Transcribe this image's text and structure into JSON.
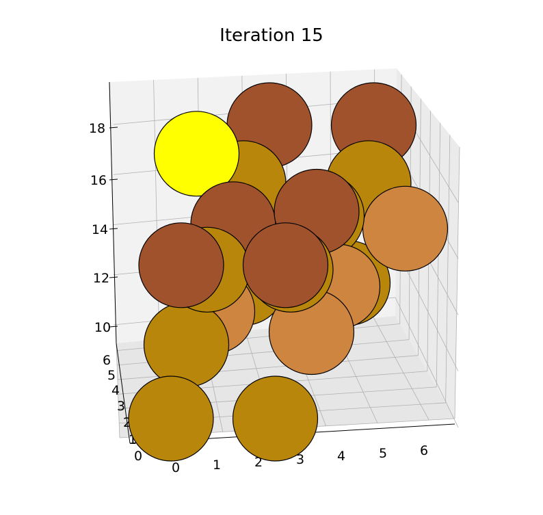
{
  "chart_data": {
    "type": "scatter",
    "projection": "3d",
    "title": "Iteration 15",
    "xlabel": "",
    "ylabel": "",
    "zlabel": "",
    "grid": true,
    "xlim": [
      0,
      6.5
    ],
    "ylim": [
      0,
      6.5
    ],
    "zlim": [
      10,
      19
    ],
    "x_ticks": [
      "0",
      "1",
      "2",
      "3",
      "4",
      "5",
      "6"
    ],
    "y_ticks": [
      "0",
      "1",
      "2",
      "3",
      "4",
      "5",
      "6"
    ],
    "z_ticks": [
      "10",
      "12",
      "14",
      "16",
      "18"
    ],
    "colors": {
      "gold": "#b8860b",
      "peru": "#cd853f",
      "sienna": "#a0522d",
      "highlight": "#ffff00"
    },
    "points": [
      {
        "x": 1.5,
        "y": 4.5,
        "z": 11.5,
        "color": "gold"
      },
      {
        "x": 4.0,
        "y": 4.5,
        "z": 11.5,
        "color": "gold"
      },
      {
        "x": 0.5,
        "y": 3.0,
        "z": 11.5,
        "color": "gold"
      },
      {
        "x": 2.5,
        "y": 4.5,
        "z": 13.5,
        "color": "peru"
      },
      {
        "x": 4.0,
        "y": 3.5,
        "z": 13.0,
        "color": "peru"
      },
      {
        "x": 5.5,
        "y": 4.0,
        "z": 14.5,
        "color": "peru"
      },
      {
        "x": 1.0,
        "y": 3.5,
        "z": 12.0,
        "color": "peru"
      },
      {
        "x": 3.5,
        "y": 3.0,
        "z": 12.0,
        "color": "peru"
      },
      {
        "x": 0.5,
        "y": 1.5,
        "z": 11.0,
        "color": "gold"
      },
      {
        "x": 3.0,
        "y": 1.5,
        "z": 11.0,
        "color": "gold"
      },
      {
        "x": 1.5,
        "y": 4.5,
        "z": 15.5,
        "color": "gold"
      },
      {
        "x": 4.5,
        "y": 4.5,
        "z": 15.5,
        "color": "gold"
      },
      {
        "x": 3.5,
        "y": 4.0,
        "z": 15.0,
        "color": "gold"
      },
      {
        "x": 1.0,
        "y": 3.0,
        "z": 14.5,
        "color": "gold"
      },
      {
        "x": 3.0,
        "y": 3.0,
        "z": 14.5,
        "color": "gold"
      },
      {
        "x": 2.0,
        "y": 5.0,
        "z": 17.0,
        "color": "sienna"
      },
      {
        "x": 4.5,
        "y": 5.0,
        "z": 17.0,
        "color": "sienna"
      },
      {
        "x": 1.5,
        "y": 3.5,
        "z": 15.5,
        "color": "sienna"
      },
      {
        "x": 3.5,
        "y": 3.5,
        "z": 16.0,
        "color": "sienna"
      },
      {
        "x": 0.5,
        "y": 2.5,
        "z": 15.5,
        "color": "sienna"
      },
      {
        "x": 3.0,
        "y": 2.5,
        "z": 15.5,
        "color": "sienna"
      },
      {
        "x": 0.5,
        "y": 4.0,
        "z": 17.5,
        "color": "highlight"
      }
    ]
  }
}
